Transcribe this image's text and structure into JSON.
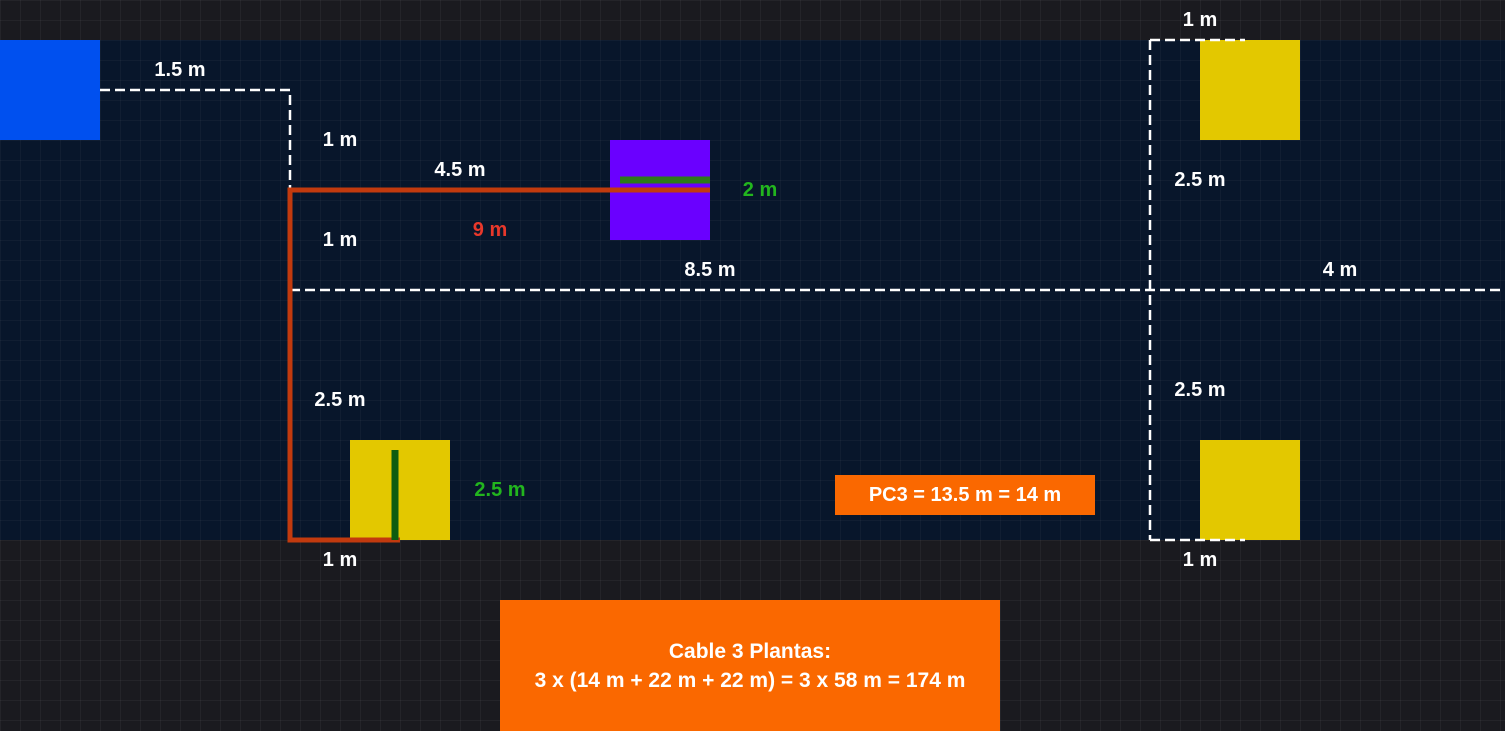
{
  "colors": {
    "panel": "#08162b",
    "background": "#1a1a1f",
    "blue_unit": "#0050ef",
    "purple_unit": "#6a00ff",
    "yellow_unit": "#e3c800",
    "cable_route": "#c23a0e",
    "green_segment": "#22b51e",
    "note_fill": "#fa6800",
    "dashed": "#ffffff"
  },
  "labels": {
    "top_right_1m": "1 m",
    "blue_run_1_5m": "1.5 m",
    "drop_1m_upper": "1 m",
    "run_4_5m": "4.5 m",
    "purple_2m": "2 m",
    "total_9m": "9 m",
    "drop_1m_lower": "1 m",
    "right_2_5m_upper": "2.5 m",
    "main_8_5m": "8.5 m",
    "right_4m": "4 m",
    "left_2_5m": "2.5 m",
    "right_2_5m_lower": "2.5 m",
    "yellow_2_5m": "2.5 m",
    "bottom_left_1m": "1 m",
    "bottom_right_1m": "1 m"
  },
  "pc3_note": "PC3 = 13.5 m = 14 m",
  "summary": {
    "line1": "Cable 3 Plantas:",
    "line2": "3 x (14 m + 22 m + 22 m) = 3 x 58 m = 174 m"
  }
}
